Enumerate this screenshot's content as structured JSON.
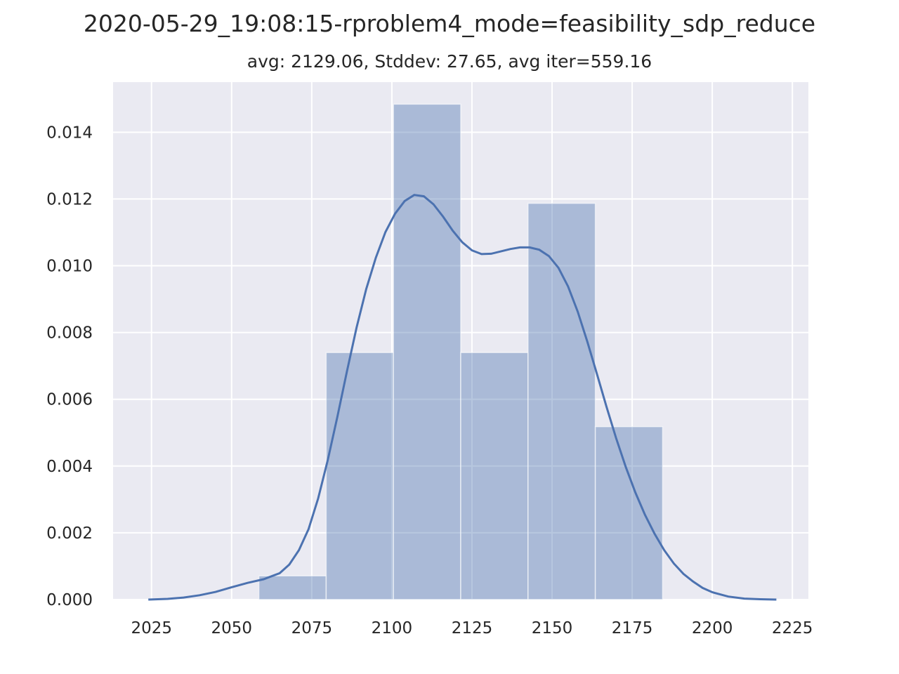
{
  "chart_data": {
    "type": "bar",
    "title": "2020-05-29_19:08:15-rproblem4_mode=feasibility_sdp_reduce",
    "subtitle": "avg: 2129.06, Stddev: 27.65, avg iter=559.16",
    "xlabel": "",
    "ylabel": "",
    "xlim": [
      2013,
      2230
    ],
    "ylim": [
      0,
      0.0155
    ],
    "xticks": [
      2025,
      2050,
      2075,
      2100,
      2125,
      2150,
      2175,
      2200,
      2225
    ],
    "yticks": [
      "0.000",
      "0.002",
      "0.004",
      "0.006",
      "0.008",
      "0.010",
      "0.012",
      "0.014"
    ],
    "grid": true,
    "colors": {
      "background": "#eaeaf2",
      "grid": "#ffffff",
      "bar_fill": "#4c72b0",
      "bar_opacity": 0.4,
      "kde_line": "#4c72b0"
    },
    "histogram": {
      "bins": [
        {
          "x0": 2058.5,
          "x1": 2079.5,
          "density": 0.00071
        },
        {
          "x0": 2079.5,
          "x1": 2100.5,
          "density": 0.0074
        },
        {
          "x0": 2100.5,
          "x1": 2121.5,
          "density": 0.01484
        },
        {
          "x0": 2121.5,
          "x1": 2142.5,
          "density": 0.0074
        },
        {
          "x0": 2142.5,
          "x1": 2163.5,
          "density": 0.01187
        },
        {
          "x0": 2163.5,
          "x1": 2184.5,
          "density": 0.00518
        }
      ]
    },
    "kde": {
      "x": [
        2024,
        2030,
        2035,
        2040,
        2045,
        2050,
        2055,
        2060,
        2065,
        2068,
        2071,
        2074,
        2077,
        2080,
        2083,
        2086,
        2089,
        2092,
        2095,
        2098,
        2101,
        2104,
        2107,
        2110,
        2113,
        2116,
        2119,
        2122,
        2125,
        2128,
        2131,
        2134,
        2137,
        2140,
        2143,
        2146,
        2149,
        2152,
        2155,
        2158,
        2161,
        2164,
        2167,
        2170,
        2173,
        2176,
        2179,
        2182,
        2185,
        2188,
        2191,
        2194,
        2197,
        2200,
        2205,
        2210,
        2215,
        2220
      ],
      "y": [
        0.0,
        2e-05,
        6e-05,
        0.00013,
        0.00023,
        0.00037,
        0.0005,
        0.00061,
        0.00079,
        0.00105,
        0.00148,
        0.00211,
        0.00303,
        0.00418,
        0.00548,
        0.00684,
        0.00815,
        0.0093,
        0.01024,
        0.01101,
        0.01156,
        0.01194,
        0.01212,
        0.01208,
        0.01184,
        0.01147,
        0.01105,
        0.0107,
        0.01046,
        0.01035,
        0.01036,
        0.01043,
        0.0105,
        0.01055,
        0.01055,
        0.01048,
        0.01029,
        0.00994,
        0.00938,
        0.00863,
        0.00773,
        0.00676,
        0.00577,
        0.00483,
        0.00397,
        0.00321,
        0.00254,
        0.00197,
        0.00148,
        0.00108,
        0.00077,
        0.00054,
        0.00035,
        0.00022,
        9e-05,
        3e-05,
        1e-05,
        0.0
      ]
    }
  }
}
